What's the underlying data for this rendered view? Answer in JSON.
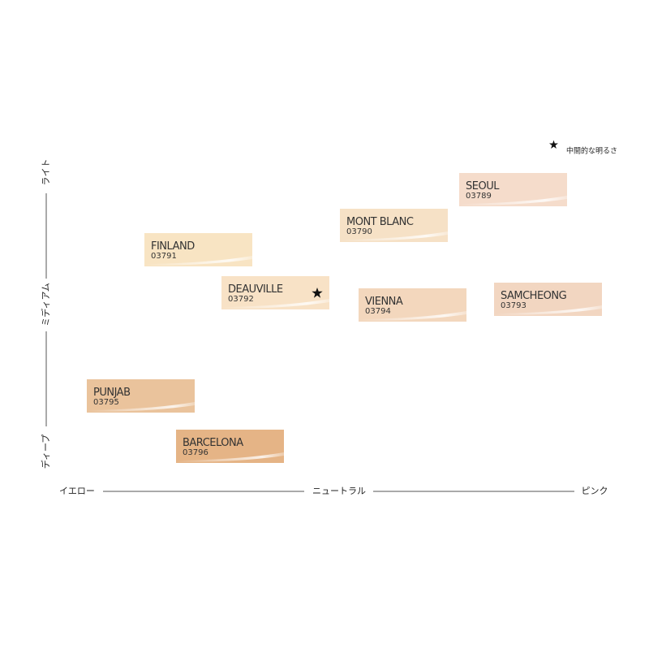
{
  "legend": {
    "label": "中間的な明るさ"
  },
  "y_axis": {
    "top": "ライト",
    "middle": "ミディアム",
    "bottom": "ディープ"
  },
  "x_axis": {
    "left": "イエロー",
    "middle": "ニュートラル",
    "right": "ピンク"
  },
  "nodes": [
    {
      "name": "SEOUL",
      "code": "03789",
      "color": "#f5dccb",
      "highlight": false
    },
    {
      "name": "MONT BLANC",
      "code": "03790",
      "color": "#f6e1c6",
      "highlight": false
    },
    {
      "name": "FINLAND",
      "code": "03791",
      "color": "#f8e4c3",
      "highlight": false
    },
    {
      "name": "DEAUVILLE",
      "code": "03792",
      "color": "#f8e2c6",
      "highlight": true
    },
    {
      "name": "VIENNA",
      "code": "03794",
      "color": "#f3d7bd",
      "highlight": false
    },
    {
      "name": "SAMCHEONG",
      "code": "03793",
      "color": "#f2d6c1",
      "highlight": false
    },
    {
      "name": "PUNJAB",
      "code": "03795",
      "color": "#eac39c",
      "highlight": false
    },
    {
      "name": "BARCELONA",
      "code": "03796",
      "color": "#e5b486",
      "highlight": false
    }
  ]
}
